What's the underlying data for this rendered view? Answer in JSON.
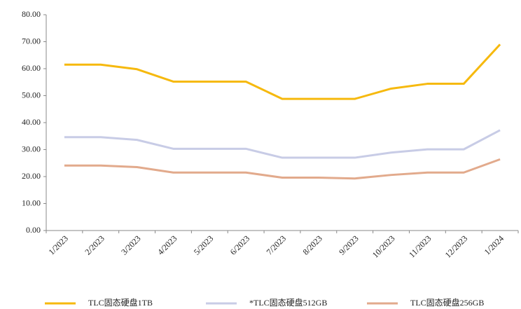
{
  "chart_data": {
    "type": "line",
    "categories": [
      "1/2023",
      "2/2023",
      "3/2023",
      "4/2023",
      "5/2023",
      "6/2023",
      "7/2023",
      "8/2023",
      "9/2023",
      "10/2023",
      "11/2023",
      "12/2023",
      "1/2024"
    ],
    "series": [
      {
        "name": "TLC固态硬盘1TB",
        "color": "#f6b90e",
        "values": [
          61.5,
          61.5,
          59.8,
          55.2,
          55.2,
          55.2,
          48.8,
          48.8,
          48.8,
          52.6,
          54.4,
          54.4,
          69.0
        ]
      },
      {
        "name": "*TLC固态硬盘512GB",
        "color": "#c8cce6",
        "values": [
          34.6,
          34.6,
          33.6,
          30.3,
          30.3,
          30.3,
          27.0,
          27.0,
          27.0,
          28.9,
          30.1,
          30.1,
          37.2
        ]
      },
      {
        "name": "TLC固态硬盘256GB",
        "color": "#e2aa8c",
        "values": [
          24.1,
          24.1,
          23.5,
          21.5,
          21.5,
          21.5,
          19.6,
          19.6,
          19.3,
          20.6,
          21.5,
          21.5,
          26.4
        ]
      }
    ],
    "ylim": [
      0,
      80
    ],
    "yticks": [
      {
        "value": 0,
        "label": "0.00"
      },
      {
        "value": 10,
        "label": "10.00"
      },
      {
        "value": 20,
        "label": "20.00"
      },
      {
        "value": 30,
        "label": "30.00"
      },
      {
        "value": 40,
        "label": "40.00"
      },
      {
        "value": 50,
        "label": "50.00"
      },
      {
        "value": 60,
        "label": "60.00"
      },
      {
        "value": 70,
        "label": "70.00"
      },
      {
        "value": 80,
        "label": "80.00"
      }
    ],
    "grid": false,
    "legend": "bottom"
  }
}
